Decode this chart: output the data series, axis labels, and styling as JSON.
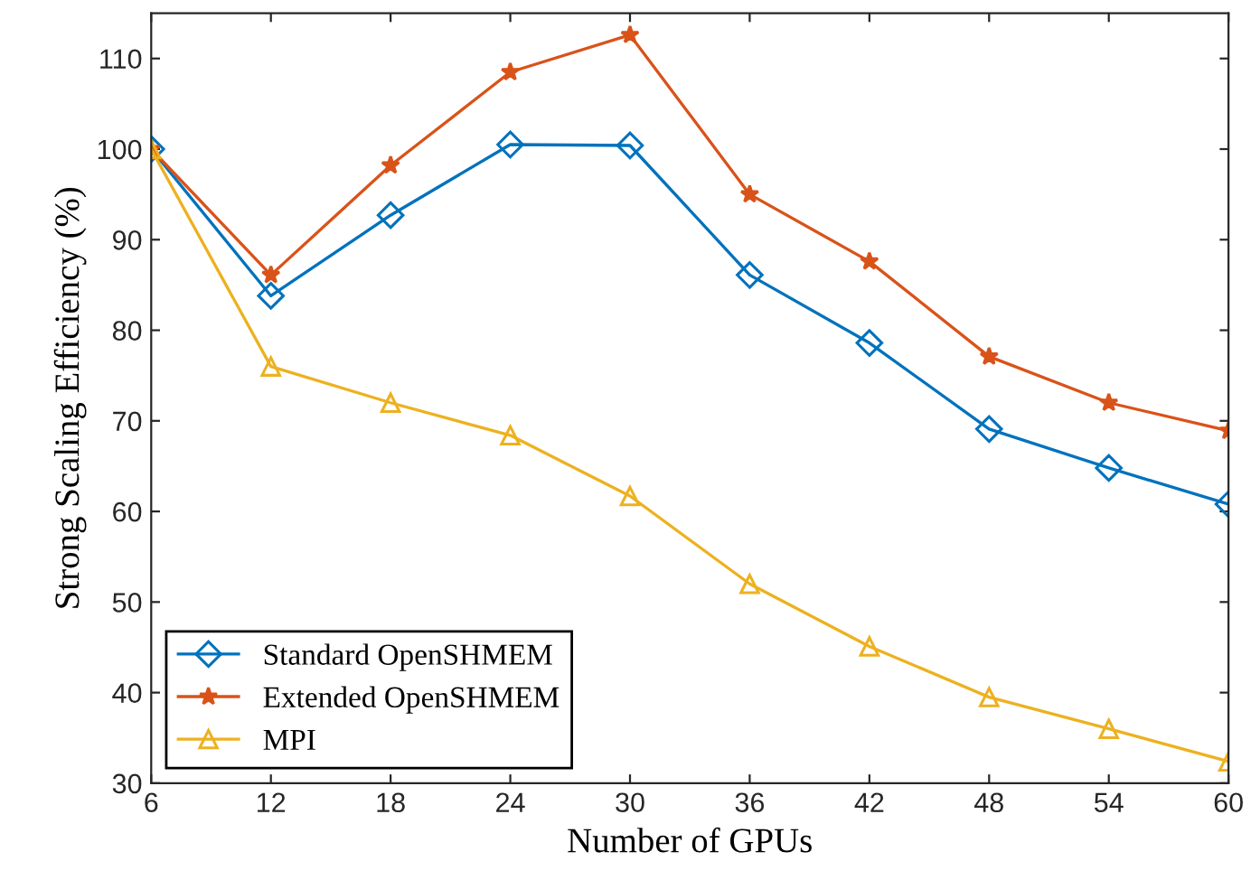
{
  "chart_data": {
    "type": "line",
    "xlabel": "Number of GPUs",
    "ylabel": "Strong Scaling Efficiency (%)",
    "x": [
      6,
      12,
      18,
      24,
      30,
      36,
      42,
      48,
      54,
      60
    ],
    "series": [
      {
        "name": "Standard OpenSHMEM",
        "color": "#0072bd",
        "marker": "diamond",
        "values": [
          100,
          83.8,
          92.7,
          100.5,
          100.4,
          86.1,
          78.6,
          69.1,
          64.8,
          60.8
        ]
      },
      {
        "name": "Extended OpenSHMEM",
        "color": "#d95319",
        "marker": "star",
        "values": [
          100,
          86.1,
          98.2,
          108.5,
          112.6,
          95,
          87.6,
          77.1,
          72,
          68.9
        ]
      },
      {
        "name": "MPI",
        "color": "#edb120",
        "marker": "triangle",
        "values": [
          100,
          76,
          72,
          68.4,
          61.7,
          52,
          45.1,
          39.5,
          36,
          32.4
        ]
      }
    ],
    "xlim": [
      6,
      60
    ],
    "xticks": [
      6,
      12,
      18,
      24,
      30,
      36,
      42,
      48,
      54,
      60
    ],
    "ylim": [
      30,
      115
    ],
    "yticks": [
      30,
      40,
      50,
      60,
      70,
      80,
      90,
      100,
      110
    ],
    "grid": false,
    "legend": "bottom left",
    "line_style": "solid"
  }
}
